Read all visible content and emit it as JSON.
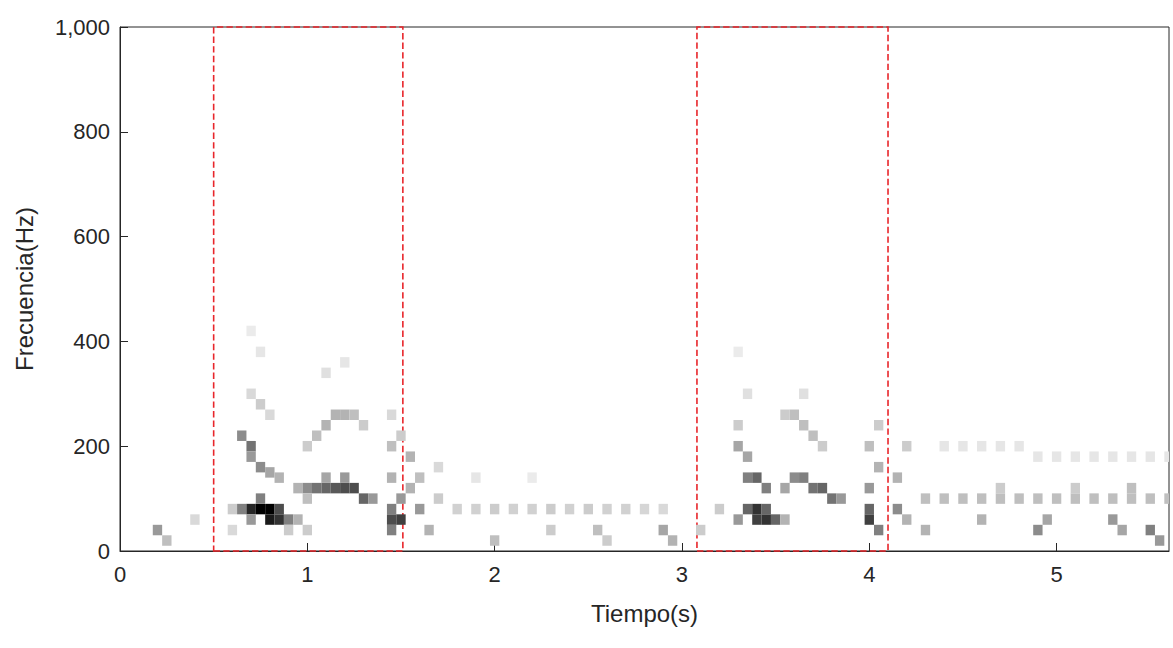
{
  "chart_data": {
    "type": "spectrogram",
    "x_label": "Tiempo(s)",
    "y_label": "Frecuencia(Hz)",
    "xlim": [
      0,
      5.6
    ],
    "xticks": [
      0,
      1,
      2,
      3,
      4,
      5
    ],
    "ylim": [
      0,
      1000
    ],
    "yticks": [
      0,
      200,
      400,
      600,
      800,
      1000
    ],
    "grid": false,
    "cell_size": {
      "time": 0.05,
      "frequency": 20
    },
    "intensity_range": [
      0,
      1
    ],
    "colors": [
      "#ffffff",
      "#000000"
    ],
    "cells": [
      [
        0.2,
        40,
        0.4
      ],
      [
        0.25,
        20,
        0.25
      ],
      [
        0.4,
        60,
        0.15
      ],
      [
        0.6,
        80,
        0.2
      ],
      [
        0.6,
        40,
        0.15
      ],
      [
        0.65,
        220,
        0.45
      ],
      [
        0.7,
        200,
        0.55
      ],
      [
        0.7,
        180,
        0.4
      ],
      [
        0.75,
        160,
        0.45
      ],
      [
        0.8,
        150,
        0.35
      ],
      [
        0.85,
        140,
        0.3
      ],
      [
        0.7,
        300,
        0.15
      ],
      [
        0.75,
        280,
        0.2
      ],
      [
        0.8,
        260,
        0.15
      ],
      [
        0.75,
        380,
        0.1
      ],
      [
        0.7,
        420,
        0.08
      ],
      [
        0.65,
        80,
        0.5
      ],
      [
        0.7,
        80,
        0.85
      ],
      [
        0.75,
        80,
        1
      ],
      [
        0.8,
        80,
        1
      ],
      [
        0.8,
        60,
        0.9
      ],
      [
        0.85,
        60,
        0.8
      ],
      [
        0.85,
        80,
        0.7
      ],
      [
        0.9,
        60,
        0.5
      ],
      [
        0.75,
        100,
        0.5
      ],
      [
        0.7,
        60,
        0.4
      ],
      [
        0.95,
        60,
        0.3
      ],
      [
        0.9,
        40,
        0.2
      ],
      [
        1.0,
        40,
        0.2
      ],
      [
        0.95,
        120,
        0.3
      ],
      [
        1.0,
        120,
        0.45
      ],
      [
        1.05,
        120,
        0.55
      ],
      [
        1.1,
        120,
        0.6
      ],
      [
        1.15,
        120,
        0.65
      ],
      [
        1.2,
        120,
        0.7
      ],
      [
        1.25,
        120,
        0.7
      ],
      [
        1.3,
        100,
        0.6
      ],
      [
        1.35,
        100,
        0.4
      ],
      [
        1.1,
        140,
        0.35
      ],
      [
        1.2,
        140,
        0.4
      ],
      [
        1.0,
        100,
        0.25
      ],
      [
        1.0,
        200,
        0.2
      ],
      [
        1.05,
        220,
        0.25
      ],
      [
        1.1,
        240,
        0.3
      ],
      [
        1.15,
        260,
        0.3
      ],
      [
        1.2,
        260,
        0.3
      ],
      [
        1.25,
        260,
        0.25
      ],
      [
        1.3,
        240,
        0.2
      ],
      [
        1.1,
        340,
        0.12
      ],
      [
        1.2,
        360,
        0.1
      ],
      [
        1.45,
        40,
        0.5
      ],
      [
        1.45,
        60,
        0.7
      ],
      [
        1.45,
        80,
        0.5
      ],
      [
        1.5,
        60,
        0.75
      ],
      [
        1.5,
        100,
        0.4
      ],
      [
        1.45,
        140,
        0.3
      ],
      [
        1.45,
        200,
        0.25
      ],
      [
        1.55,
        180,
        0.3
      ],
      [
        1.55,
        120,
        0.3
      ],
      [
        1.5,
        220,
        0.2
      ],
      [
        1.45,
        260,
        0.15
      ],
      [
        1.6,
        80,
        0.4
      ],
      [
        1.6,
        140,
        0.25
      ],
      [
        1.65,
        40,
        0.3
      ],
      [
        1.7,
        100,
        0.2
      ],
      [
        1.7,
        160,
        0.15
      ],
      [
        1.8,
        80,
        0.18
      ],
      [
        1.9,
        80,
        0.18
      ],
      [
        2.0,
        80,
        0.2
      ],
      [
        2.1,
        80,
        0.18
      ],
      [
        2.2,
        80,
        0.18
      ],
      [
        2.3,
        80,
        0.2
      ],
      [
        2.4,
        80,
        0.18
      ],
      [
        2.5,
        80,
        0.2
      ],
      [
        2.6,
        80,
        0.18
      ],
      [
        2.7,
        80,
        0.18
      ],
      [
        2.8,
        80,
        0.16
      ],
      [
        2.9,
        80,
        0.15
      ],
      [
        2.0,
        20,
        0.25
      ],
      [
        2.3,
        40,
        0.2
      ],
      [
        2.55,
        40,
        0.25
      ],
      [
        2.6,
        20,
        0.2
      ],
      [
        2.9,
        40,
        0.35
      ],
      [
        2.95,
        20,
        0.3
      ],
      [
        1.9,
        140,
        0.1
      ],
      [
        2.2,
        140,
        0.08
      ],
      [
        3.1,
        40,
        0.2
      ],
      [
        3.2,
        80,
        0.2
      ],
      [
        3.3,
        60,
        0.4
      ],
      [
        3.3,
        200,
        0.35
      ],
      [
        3.35,
        180,
        0.35
      ],
      [
        3.3,
        240,
        0.2
      ],
      [
        3.35,
        300,
        0.12
      ],
      [
        3.3,
        380,
        0.08
      ],
      [
        3.35,
        140,
        0.5
      ],
      [
        3.4,
        140,
        0.6
      ],
      [
        3.45,
        120,
        0.5
      ],
      [
        3.35,
        80,
        0.6
      ],
      [
        3.4,
        80,
        0.8
      ],
      [
        3.4,
        60,
        0.75
      ],
      [
        3.45,
        60,
        0.8
      ],
      [
        3.45,
        80,
        0.6
      ],
      [
        3.5,
        60,
        0.6
      ],
      [
        3.55,
        60,
        0.3
      ],
      [
        3.55,
        120,
        0.35
      ],
      [
        3.6,
        140,
        0.45
      ],
      [
        3.65,
        140,
        0.5
      ],
      [
        3.7,
        120,
        0.55
      ],
      [
        3.75,
        120,
        0.6
      ],
      [
        3.8,
        100,
        0.55
      ],
      [
        3.85,
        100,
        0.4
      ],
      [
        3.55,
        260,
        0.2
      ],
      [
        3.6,
        260,
        0.25
      ],
      [
        3.65,
        240,
        0.25
      ],
      [
        3.7,
        220,
        0.25
      ],
      [
        3.75,
        200,
        0.2
      ],
      [
        3.65,
        300,
        0.12
      ],
      [
        4.0,
        60,
        0.75
      ],
      [
        4.0,
        80,
        0.6
      ],
      [
        4.05,
        40,
        0.5
      ],
      [
        4.0,
        120,
        0.4
      ],
      [
        4.05,
        160,
        0.3
      ],
      [
        4.0,
        200,
        0.25
      ],
      [
        4.05,
        240,
        0.2
      ],
      [
        4.15,
        80,
        0.45
      ],
      [
        4.15,
        140,
        0.3
      ],
      [
        4.2,
        200,
        0.2
      ],
      [
        4.2,
        60,
        0.3
      ],
      [
        4.3,
        100,
        0.25
      ],
      [
        4.4,
        100,
        0.25
      ],
      [
        4.5,
        100,
        0.25
      ],
      [
        4.6,
        100,
        0.25
      ],
      [
        4.7,
        100,
        0.25
      ],
      [
        4.8,
        100,
        0.25
      ],
      [
        4.9,
        100,
        0.25
      ],
      [
        5.0,
        100,
        0.25
      ],
      [
        5.1,
        100,
        0.25
      ],
      [
        5.2,
        100,
        0.25
      ],
      [
        5.3,
        100,
        0.25
      ],
      [
        5.4,
        100,
        0.25
      ],
      [
        5.5,
        100,
        0.25
      ],
      [
        5.6,
        100,
        0.25
      ],
      [
        4.4,
        200,
        0.1
      ],
      [
        4.5,
        200,
        0.1
      ],
      [
        4.6,
        200,
        0.1
      ],
      [
        4.7,
        200,
        0.1
      ],
      [
        4.8,
        200,
        0.1
      ],
      [
        4.9,
        180,
        0.1
      ],
      [
        5.0,
        180,
        0.1
      ],
      [
        5.1,
        180,
        0.1
      ],
      [
        5.2,
        180,
        0.1
      ],
      [
        5.3,
        180,
        0.1
      ],
      [
        5.4,
        180,
        0.1
      ],
      [
        5.5,
        180,
        0.1
      ],
      [
        5.6,
        180,
        0.1
      ],
      [
        4.3,
        40,
        0.3
      ],
      [
        4.6,
        60,
        0.3
      ],
      [
        4.9,
        40,
        0.45
      ],
      [
        4.95,
        60,
        0.35
      ],
      [
        5.3,
        60,
        0.4
      ],
      [
        5.35,
        40,
        0.35
      ],
      [
        5.5,
        40,
        0.5
      ],
      [
        5.55,
        20,
        0.4
      ],
      [
        4.7,
        120,
        0.2
      ],
      [
        5.1,
        120,
        0.2
      ],
      [
        5.4,
        120,
        0.25
      ]
    ],
    "boxes": [
      {
        "x": [
          0.5,
          1.51
        ],
        "y": [
          0,
          1000
        ],
        "color": "#e8262b",
        "line_style": "dashed"
      },
      {
        "x": [
          3.08,
          4.1
        ],
        "y": [
          0,
          1000
        ],
        "color": "#e8262b",
        "line_style": "dashed"
      }
    ]
  }
}
